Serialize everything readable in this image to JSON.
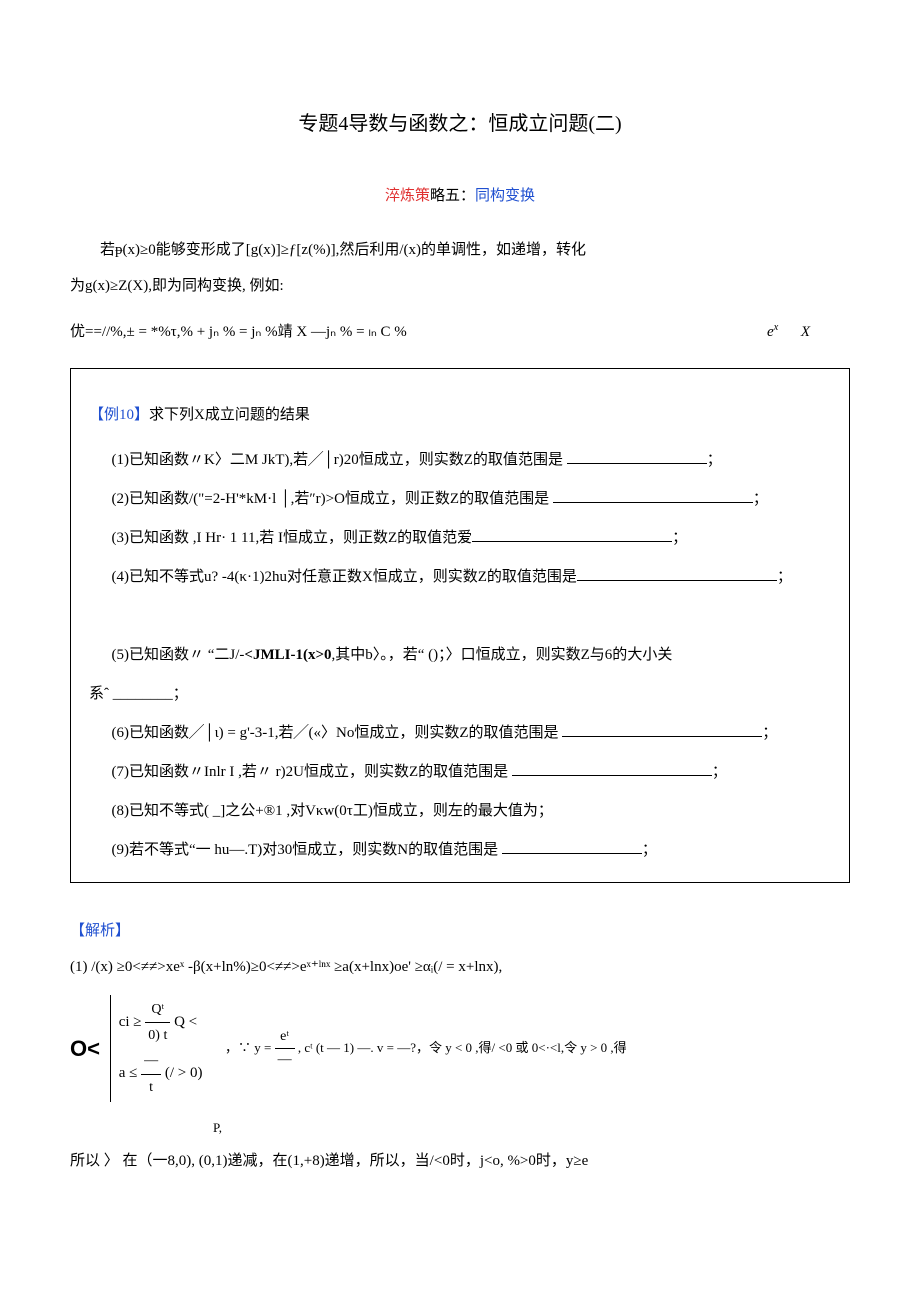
{
  "title": "专题4导数与函数之：恒成立问题(二)",
  "subtitle_red": "淬炼策",
  "subtitle_black": "略五：",
  "subtitle_blue": "同构变换",
  "intro_p1": "若ᵽ(x)≥0能够变形成了[g(x)]≥ƒ[z(%)],然后利用/(x)的单调性，如递增，转化",
  "intro_p2": "为g(x)≥Z(X),即为同构变换, 例如:",
  "formula_main": "优==//%,± = *%τ,% + jₙ % = jₙ %靖  X —jₙ % = ₗₙ C %",
  "formula_right_1": "e",
  "formula_right_1_sup": "x",
  "formula_right_2": "X",
  "box_label": "【例10】",
  "box_title_rest": "求下列X成立问题的结果",
  "items": {
    "i1": "(1)已知函数〃K〉二M         JkT),若╱│r)20恒成立，则实数Z的取值范围是 ",
    "i1_tail": "；",
    "i2": "(2)已知函数/(\"=2-H'*kM·l │,若″r)>O恒成立，则正数Z的取值范围是 ",
    "i2_tail": "；",
    "i3": "(3)已知函数                       ,I Hr· 1 11,若 I恒成立，则正数Z的取值范爱",
    "i3_tail": "；",
    "i4": "(4)已知不等式u? -4(κ·1)2hu对任意正数X恒成立，则实数Z的取值范围是",
    "i4_tail": "；",
    "i5_a": "(5)已知函数〃  “二J/-",
    "i5_bold": "<JMLI-1(x>0",
    "i5_b": ",其中b〉。，若“ ()；〉口恒成立，则实数Z与6的大小关",
    "i5_line2": "系ˆ ________；",
    "i6": "(6)已知函数╱│ι) = g'-3-1,若╱(«〉No恒成立，则实数Z的取值范围是 ",
    "i6_tail": "；",
    "i7": "(7)已知函数〃Inlr I ,若〃   r)2U恒成立，则实数Z的取值范围是 ",
    "i7_tail": "；",
    "i8": "(8)已知不等式(   _]之公+®1 ,对Vκw(0τ工)恒成立，则左的最大值为；",
    "i9": "(9)若不等式“一           hu—.T)对30恒成立，则实数N的取值范围是 ",
    "i9_tail": "；"
  },
  "analysis_label": "【解析】",
  "sol": {
    "line1": "(1)    /(x) ≥0<≠≠>xeˣ -β(x+ln%)≥0<≠≠>eˣ⁺ˡⁿˣ ≥a(x+lnx)oe' ≥αᵢ(/ = x+lnx),",
    "brace_top_pre": "ci ≥ ",
    "frac_top_num": "Qᵗ",
    "frac_top_den": "0) t",
    "brace_top_post": " Q <",
    "brace_bot_pre": "a ≤ ",
    "frac_bot_num": "—",
    "frac_bot_den": "t",
    "brace_bot_post": " (/ > 0)",
    "mid_text": "，∵ y = ",
    "frac_mid_num": "eᵗ",
    "frac_mid_post": ",   cᵗ (t — 1)",
    "mid_text2": "—.   v = —?，令 y < 0 ,得/ <0 或  0<·<l,令 y > 0 ,得",
    "p_line": "P,",
    "line3": "所以 〉     在（一8,0), (0,1)递减，在(1,+8)递增，所以，当/<0时，j<o, %>0时，y≥e"
  },
  "colors": {
    "red": "#e03030",
    "blue": "#2050d0",
    "text": "#000000",
    "bg": "#ffffff",
    "border": "#000000"
  },
  "font_sizes": {
    "title": 20,
    "body": 15,
    "small": 13
  }
}
